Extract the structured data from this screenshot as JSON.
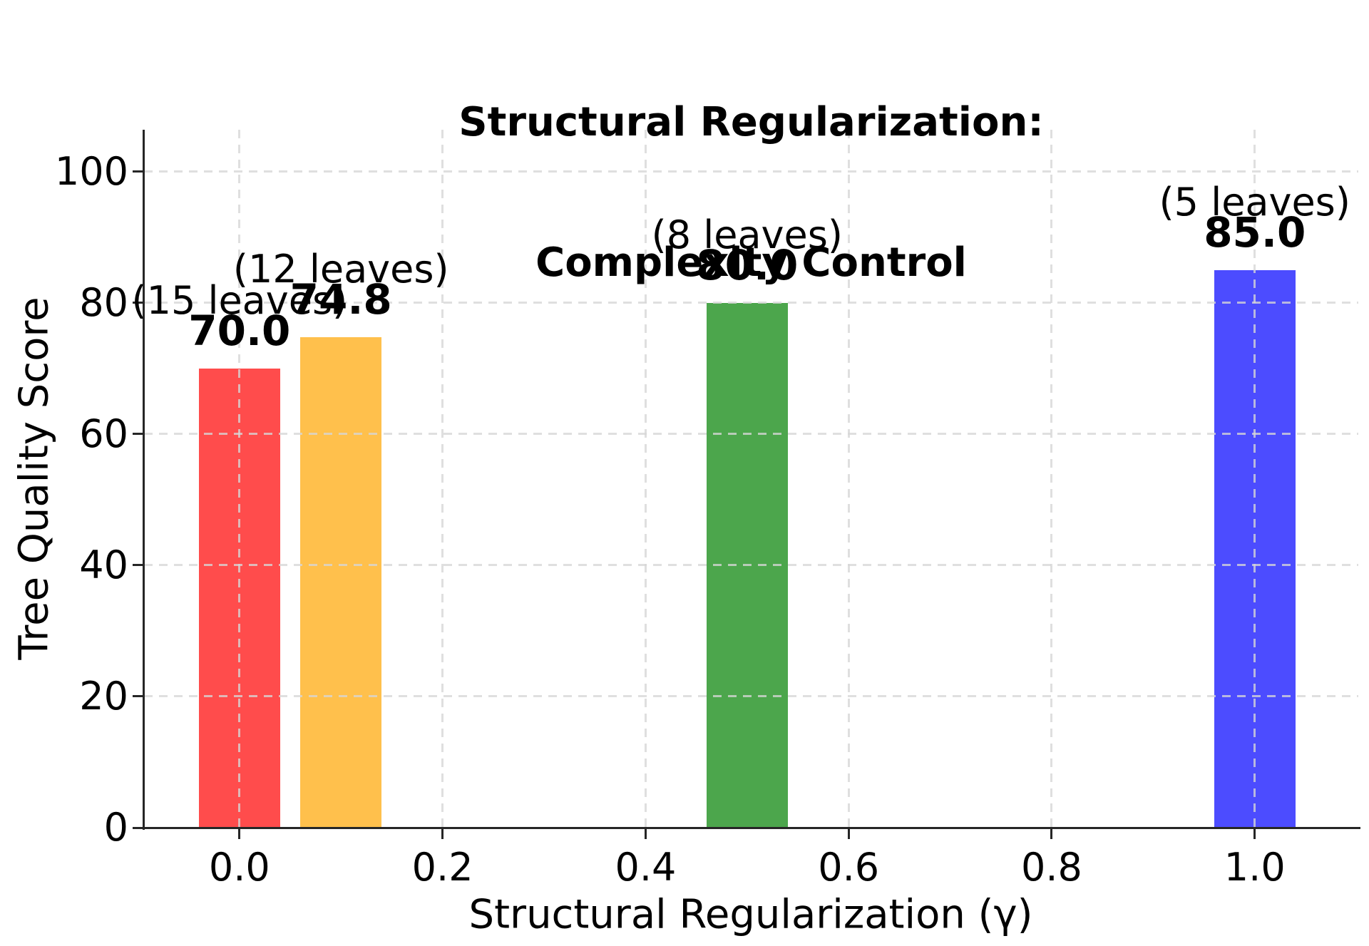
{
  "title": {
    "line1": "Structural Regularization:",
    "line2": "Complexity Control"
  },
  "chart_data": {
    "type": "bar",
    "title": "Structural Regularization:\nComplexity Control",
    "xlabel": "Structural Regularization (γ)",
    "ylabel": "Tree Quality Score",
    "x": [
      0.0,
      0.1,
      0.5,
      1.0
    ],
    "values": [
      70.0,
      74.8,
      80.0,
      85.0
    ],
    "value_labels": [
      "70.0",
      "74.8",
      "80.0",
      "85.0"
    ],
    "annotations": [
      "(15 leaves)",
      "(12 leaves)",
      "(8 leaves)",
      "(5 leaves)"
    ],
    "bar_colors": [
      "#ff4c4c",
      "#ffc04c",
      "#4ca64c",
      "#4c4cff"
    ],
    "bar_width": 0.08,
    "xticks": [
      0.0,
      0.2,
      0.4,
      0.6,
      0.8,
      1.0
    ],
    "xtick_labels": [
      "0.0",
      "0.2",
      "0.4",
      "0.6",
      "0.8",
      "1.0"
    ],
    "yticks": [
      0,
      20,
      40,
      60,
      80,
      100
    ],
    "ytick_labels": [
      "0",
      "20",
      "40",
      "60",
      "80",
      "100"
    ],
    "xlim": [
      -0.094,
      1.102
    ],
    "ylim": [
      0,
      106.4
    ],
    "grid": true,
    "grid_style": "dashed",
    "legend": false,
    "text_color": "#000000",
    "spine_color": "#262626"
  }
}
